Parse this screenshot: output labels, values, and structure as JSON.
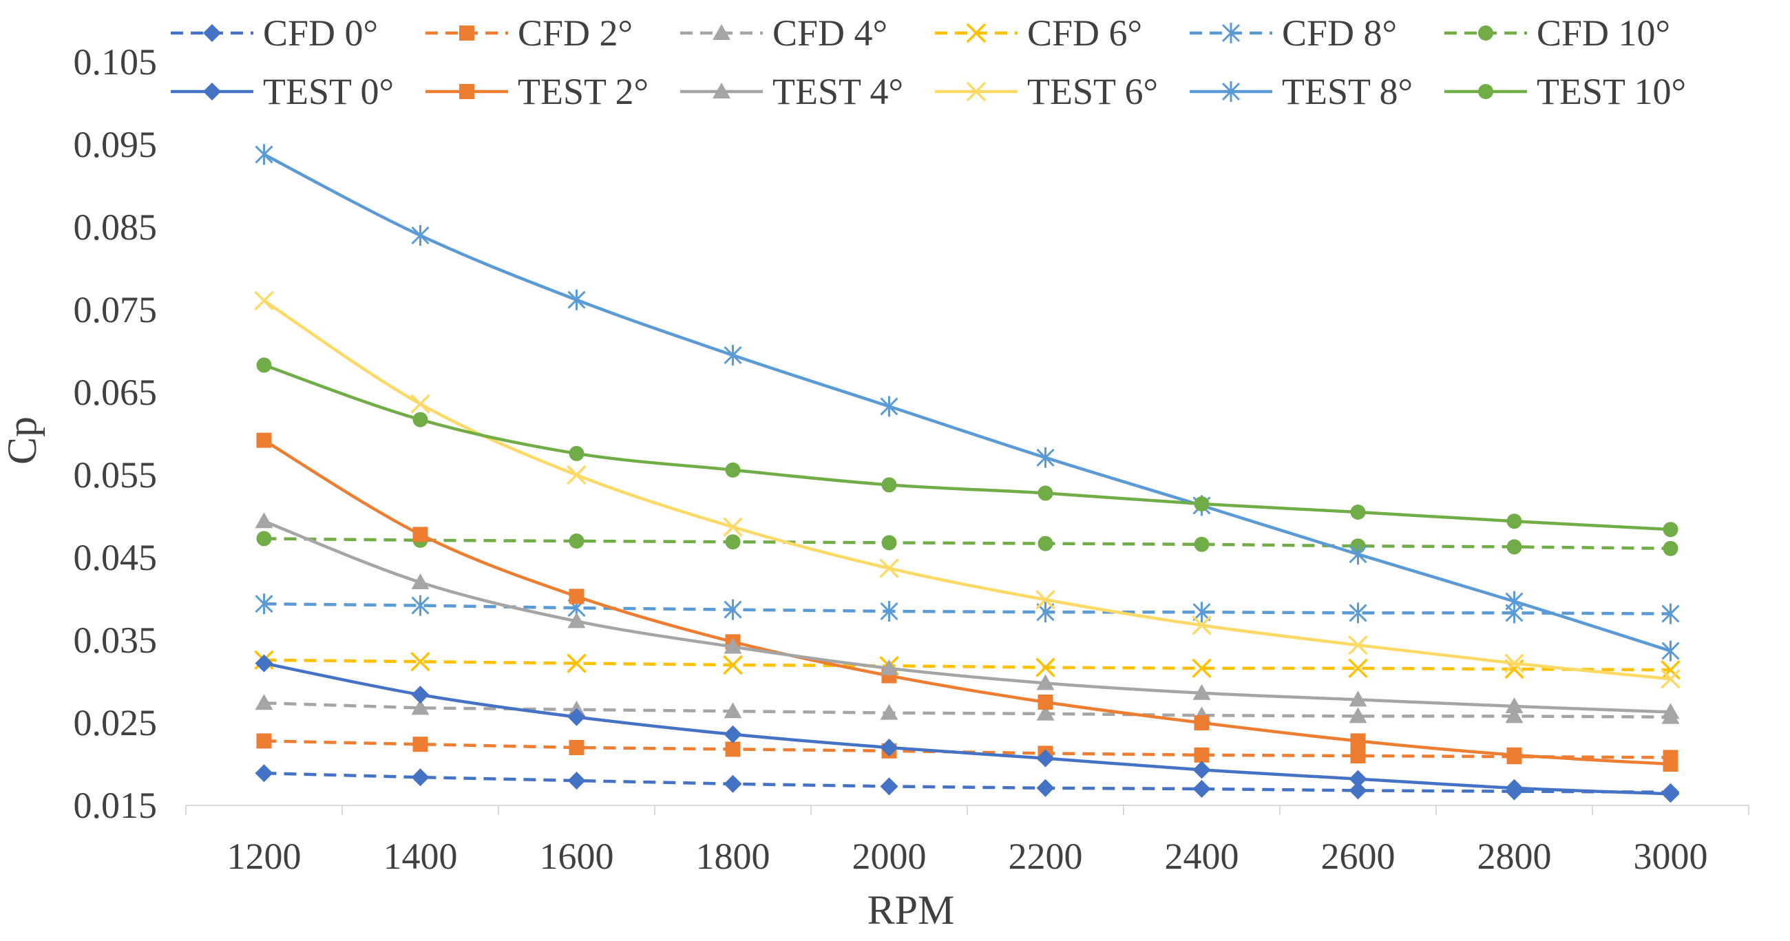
{
  "chart_data": {
    "type": "line",
    "xlabel": "RPM",
    "ylabel": "Cp",
    "x": [
      1200,
      1400,
      1600,
      1800,
      2000,
      2200,
      2400,
      2600,
      2800,
      3000
    ],
    "x_tick_labels": [
      "1200",
      "1400",
      "1600",
      "1800",
      "2000",
      "2200",
      "2400",
      "2600",
      "2800",
      "3000"
    ],
    "ylim": [
      0.015,
      0.105
    ],
    "y_ticks": [
      0.015,
      0.025,
      0.035,
      0.045,
      0.055,
      0.065,
      0.075,
      0.085,
      0.095,
      0.105
    ],
    "y_tick_labels": [
      "0.015",
      "0.025",
      "0.035",
      "0.045",
      "0.055",
      "0.065",
      "0.075",
      "0.085",
      "0.095",
      "0.105"
    ],
    "grid": false,
    "legend_position": "top",
    "series": [
      {
        "name": "CFD 0°",
        "color": "#4472C4",
        "style": "dashed",
        "marker": "diamond",
        "values": [
          0.0189,
          0.0184,
          0.018,
          0.0176,
          0.0173,
          0.0171,
          0.017,
          0.0168,
          0.0167,
          0.0166
        ]
      },
      {
        "name": "CFD 2°",
        "color": "#ED7D31",
        "style": "dashed",
        "marker": "square",
        "values": [
          0.0228,
          0.0224,
          0.022,
          0.0218,
          0.0216,
          0.0213,
          0.0211,
          0.021,
          0.0209,
          0.0208
        ]
      },
      {
        "name": "CFD 4°",
        "color": "#A5A5A5",
        "style": "dashed",
        "marker": "triangle",
        "values": [
          0.0274,
          0.0268,
          0.0266,
          0.0264,
          0.0262,
          0.0261,
          0.0259,
          0.0258,
          0.0258,
          0.0257
        ]
      },
      {
        "name": "CFD 6°",
        "color": "#FFC000",
        "style": "dashed",
        "marker": "x",
        "values": [
          0.0326,
          0.0324,
          0.0322,
          0.032,
          0.0319,
          0.0317,
          0.0316,
          0.0316,
          0.0315,
          0.0314
        ]
      },
      {
        "name": "CFD 8°",
        "color": "#5B9BD5",
        "style": "dashed",
        "marker": "star",
        "values": [
          0.0394,
          0.0392,
          0.0389,
          0.0387,
          0.0385,
          0.0384,
          0.0384,
          0.0383,
          0.0383,
          0.0382
        ]
      },
      {
        "name": "CFD 10°",
        "color": "#70AD47",
        "style": "dashed",
        "marker": "circle",
        "values": [
          0.0473,
          0.0471,
          0.047,
          0.0469,
          0.0468,
          0.0467,
          0.0466,
          0.0464,
          0.0463,
          0.0461
        ]
      },
      {
        "name": "TEST 0°",
        "color": "#4472C4",
        "style": "solid",
        "marker": "diamond",
        "values": [
          0.0322,
          0.0284,
          0.0257,
          0.0236,
          0.022,
          0.0207,
          0.0193,
          0.0182,
          0.0171,
          0.0164
        ]
      },
      {
        "name": "TEST 2°",
        "color": "#ED7D31",
        "style": "solid",
        "marker": "square",
        "values": [
          0.0592,
          0.0478,
          0.0403,
          0.0348,
          0.0307,
          0.0275,
          0.025,
          0.0228,
          0.0211,
          0.02
        ]
      },
      {
        "name": "TEST 4°",
        "color": "#A5A5A5",
        "style": "solid",
        "marker": "triangle",
        "values": [
          0.0494,
          0.042,
          0.0373,
          0.0342,
          0.0316,
          0.0298,
          0.0286,
          0.0278,
          0.027,
          0.0263
        ]
      },
      {
        "name": "TEST 6°",
        "color": "#FFD966",
        "style": "solid",
        "marker": "x",
        "values": [
          0.0761,
          0.0636,
          0.055,
          0.0487,
          0.0437,
          0.0399,
          0.0368,
          0.0344,
          0.0322,
          0.0303
        ]
      },
      {
        "name": "TEST 8°",
        "color": "#5B9BD5",
        "style": "solid",
        "marker": "star",
        "values": [
          0.0938,
          0.084,
          0.0762,
          0.0695,
          0.0633,
          0.0571,
          0.0513,
          0.0454,
          0.0397,
          0.0337
        ]
      },
      {
        "name": "TEST 10°",
        "color": "#70AD47",
        "style": "solid",
        "marker": "circle",
        "values": [
          0.0683,
          0.0617,
          0.0576,
          0.0556,
          0.0538,
          0.0528,
          0.0515,
          0.0505,
          0.0494,
          0.0484
        ]
      }
    ]
  }
}
